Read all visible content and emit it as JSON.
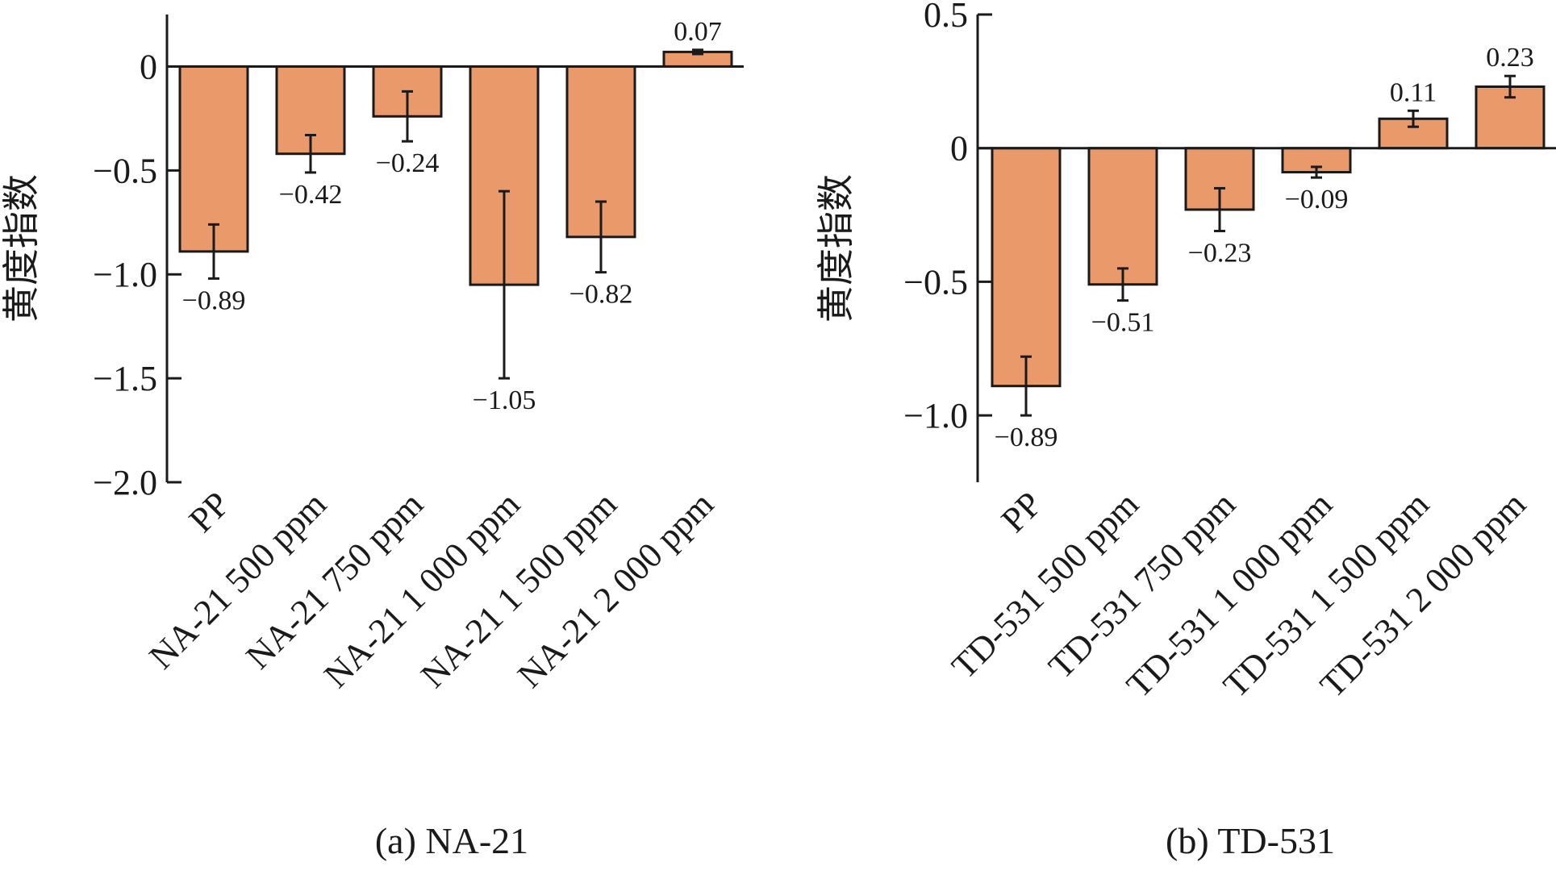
{
  "colors": {
    "bar_fill": "#E9996A",
    "stroke": "#1a1a1a"
  },
  "chart_data": [
    {
      "type": "bar",
      "title": "(a) NA-21",
      "ylabel": "黄度指数",
      "xlabel": "",
      "ylim": [
        -2.0,
        0.25
      ],
      "yticks": [
        0,
        -0.5,
        -1.0,
        -1.5,
        -2.0
      ],
      "ytick_labels": [
        "0",
        "−0.5",
        "−1.0",
        "−1.5",
        "−2.0"
      ],
      "grid": false,
      "categories": [
        "PP",
        "NA-21 500 ppm",
        "NA-21 750 ppm",
        "NA-21 1 000 ppm",
        "NA-21 1 500 ppm",
        "NA-21 2 000 ppm"
      ],
      "values": [
        -0.89,
        -0.42,
        -0.24,
        -1.05,
        -0.82,
        0.07
      ],
      "value_labels": [
        "−0.89",
        "−0.42",
        "−0.24",
        "−1.05",
        "−0.82",
        "0.07"
      ],
      "error_bars": [
        0.13,
        0.09,
        0.12,
        0.45,
        0.17,
        0.01
      ]
    },
    {
      "type": "bar",
      "title": "(b) TD-531",
      "ylabel": "黄度指数",
      "xlabel": "",
      "ylim": [
        -1.25,
        0.5
      ],
      "yticks": [
        0.5,
        0,
        -0.5,
        -1.0
      ],
      "ytick_labels": [
        "0.5",
        "0",
        "−0.5",
        "−1.0"
      ],
      "grid": false,
      "categories": [
        "PP",
        "TD-531 500 ppm",
        "TD-531 750 ppm",
        "TD-531 1 000 ppm",
        "TD-531 1 500 ppm",
        "TD-531 2 000 ppm"
      ],
      "values": [
        -0.89,
        -0.51,
        -0.23,
        -0.09,
        0.11,
        0.23
      ],
      "value_labels": [
        "−0.89",
        "−0.51",
        "−0.23",
        "−0.09",
        "0.11",
        "0.23"
      ],
      "error_bars": [
        0.11,
        0.06,
        0.08,
        0.02,
        0.03,
        0.04
      ]
    }
  ]
}
